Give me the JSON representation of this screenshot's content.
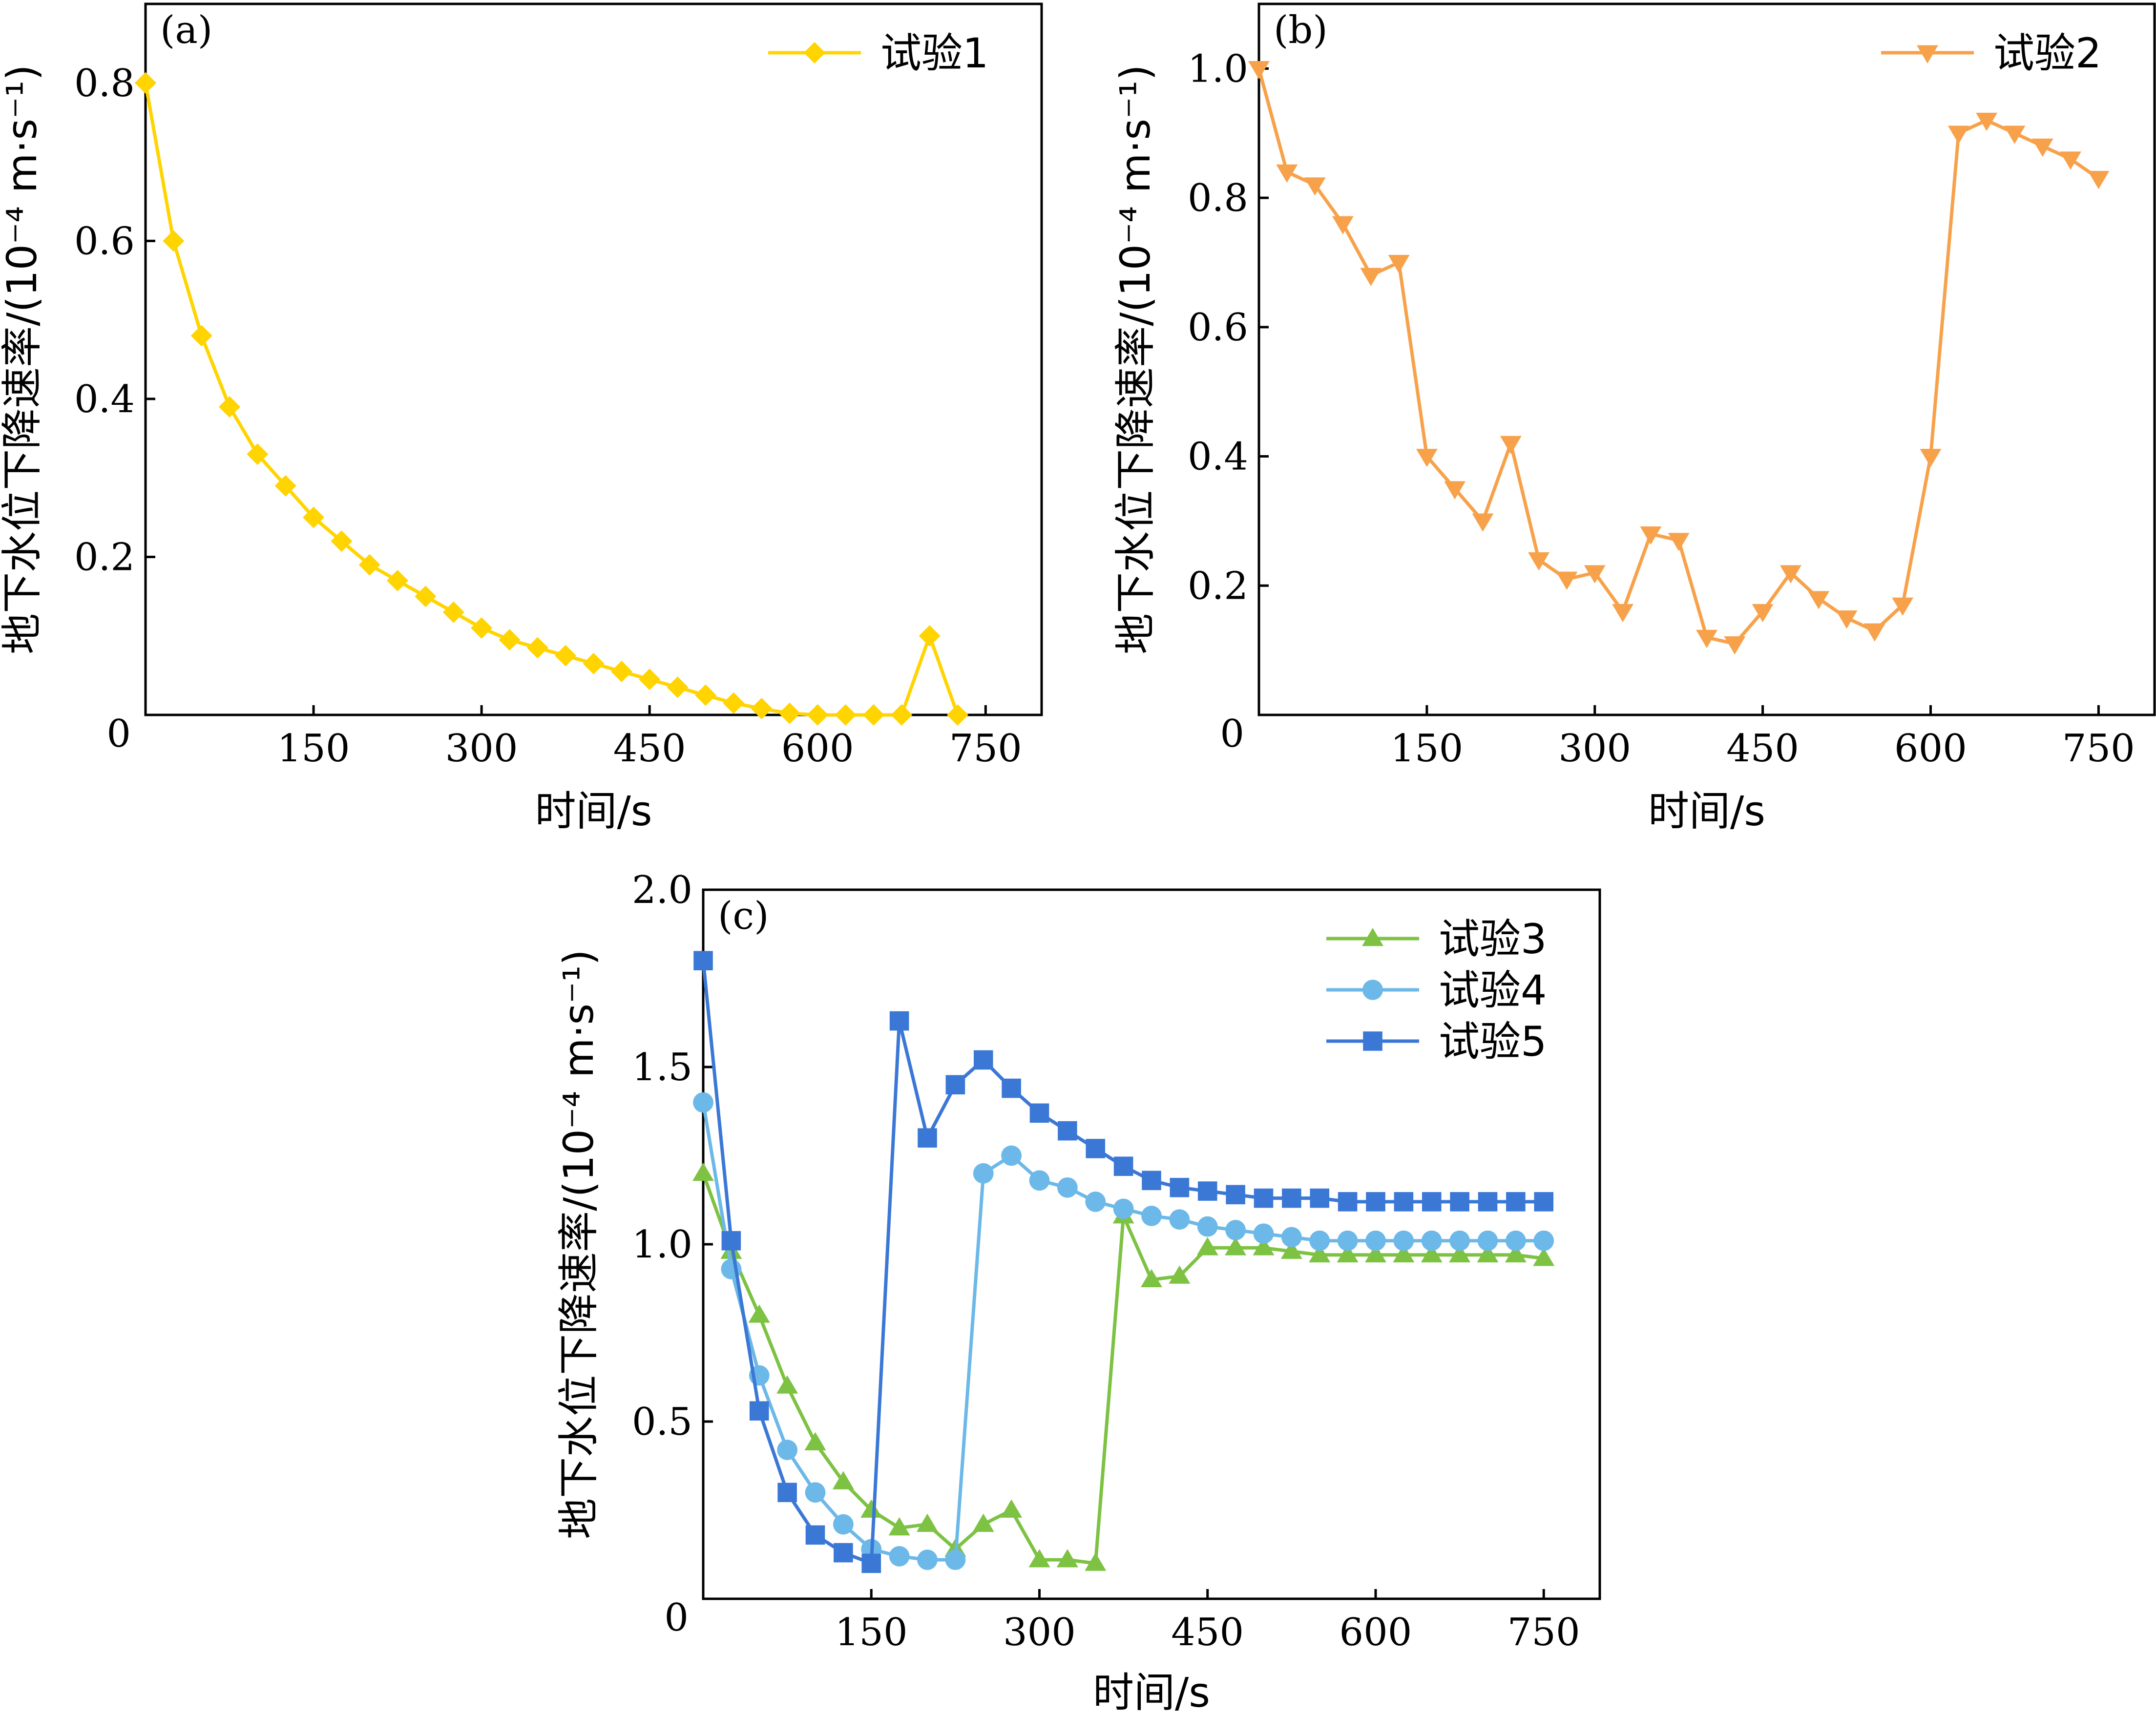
{
  "figure": {
    "panels": [
      "a",
      "b",
      "c"
    ]
  },
  "chart_data": [
    {
      "id": "a",
      "type": "line",
      "panel_label": "(a)",
      "xlabel": "时间/s",
      "ylabel": "地下水位下降速率/(10⁻⁴ m·s⁻¹)",
      "xlim": [
        0,
        800
      ],
      "ylim": [
        0,
        0.9
      ],
      "xticks": [
        0,
        150,
        300,
        450,
        600,
        750
      ],
      "xtick_labels": [
        "0",
        "150",
        "300",
        "450",
        "600",
        "750"
      ],
      "yticks": [
        0.2,
        0.4,
        0.6,
        0.8
      ],
      "ytick_labels": [
        "0.2",
        "0.4",
        "0.6",
        "0.8"
      ],
      "legend_position": "top-right",
      "series": [
        {
          "name": "试验1",
          "color": "#FFD400",
          "marker": "diamond",
          "x": [
            0,
            25,
            50,
            75,
            100,
            125,
            150,
            175,
            200,
            225,
            250,
            275,
            300,
            325,
            350,
            375,
            400,
            425,
            450,
            475,
            500,
            525,
            550,
            575,
            600,
            625,
            650,
            675,
            700,
            725
          ],
          "y": [
            0.8,
            0.6,
            0.48,
            0.39,
            0.33,
            0.29,
            0.25,
            0.22,
            0.19,
            0.17,
            0.15,
            0.13,
            0.11,
            0.095,
            0.085,
            0.075,
            0.065,
            0.055,
            0.045,
            0.035,
            0.025,
            0.015,
            0.008,
            0.002,
            0.0,
            0.0,
            0.0,
            0.0,
            0.1,
            0.0
          ]
        }
      ]
    },
    {
      "id": "b",
      "type": "line",
      "panel_label": "(b)",
      "xlabel": "时间/s",
      "ylabel": "地下水位下降速率/(10⁻⁴ m·s⁻¹)",
      "xlim": [
        0,
        800
      ],
      "ylim": [
        0,
        1.1
      ],
      "xticks": [
        0,
        150,
        300,
        450,
        600,
        750
      ],
      "xtick_labels": [
        "0",
        "150",
        "300",
        "450",
        "600",
        "750"
      ],
      "yticks": [
        0.2,
        0.4,
        0.6,
        0.8,
        1.0
      ],
      "ytick_labels": [
        "0.2",
        "0.4",
        "0.6",
        "0.8",
        "1.0"
      ],
      "legend_position": "top-right",
      "series": [
        {
          "name": "试验2",
          "color": "#F7A24B",
          "marker": "triangle-down",
          "x": [
            0,
            25,
            50,
            75,
            100,
            125,
            150,
            175,
            200,
            225,
            250,
            275,
            300,
            325,
            350,
            375,
            400,
            425,
            450,
            475,
            500,
            525,
            550,
            575,
            600,
            625,
            650,
            675,
            700,
            725,
            750
          ],
          "y": [
            1.0,
            0.84,
            0.82,
            0.76,
            0.68,
            0.7,
            0.4,
            0.35,
            0.3,
            0.42,
            0.24,
            0.21,
            0.22,
            0.16,
            0.28,
            0.27,
            0.12,
            0.11,
            0.16,
            0.22,
            0.18,
            0.15,
            0.13,
            0.17,
            0.4,
            0.9,
            0.92,
            0.9,
            0.88,
            0.86,
            0.83
          ]
        }
      ]
    },
    {
      "id": "c",
      "type": "line",
      "panel_label": "(c)",
      "xlabel": "时间/s",
      "ylabel": "地下水位下降速率/(10⁻⁴ m·s⁻¹)",
      "xlim": [
        0,
        800
      ],
      "ylim": [
        0,
        2.0
      ],
      "xticks": [
        0,
        150,
        300,
        450,
        600,
        750
      ],
      "xtick_labels": [
        "0",
        "150",
        "300",
        "450",
        "600",
        "750"
      ],
      "yticks": [
        0.5,
        1.0,
        1.5,
        2.0
      ],
      "ytick_labels": [
        "0.5",
        "1.0",
        "1.5",
        "2.0"
      ],
      "legend_position": "top-right",
      "series": [
        {
          "name": "试验3",
          "color": "#7DC242",
          "marker": "triangle-up",
          "x": [
            0,
            25,
            50,
            75,
            100,
            125,
            150,
            175,
            200,
            225,
            250,
            275,
            300,
            325,
            350,
            375,
            400,
            425,
            450,
            475,
            500,
            525,
            550,
            575,
            600,
            625,
            650,
            675,
            700,
            725,
            750
          ],
          "y": [
            1.2,
            0.98,
            0.8,
            0.6,
            0.44,
            0.33,
            0.25,
            0.2,
            0.21,
            0.14,
            0.21,
            0.25,
            0.11,
            0.11,
            0.1,
            1.08,
            0.9,
            0.91,
            0.99,
            0.99,
            0.99,
            0.98,
            0.97,
            0.97,
            0.97,
            0.97,
            0.97,
            0.97,
            0.97,
            0.97,
            0.96
          ]
        },
        {
          "name": "试验4",
          "color": "#6CB8E8",
          "marker": "circle",
          "x": [
            0,
            25,
            50,
            75,
            100,
            125,
            150,
            175,
            200,
            225,
            250,
            275,
            300,
            325,
            350,
            375,
            400,
            425,
            450,
            475,
            500,
            525,
            550,
            575,
            600,
            625,
            650,
            675,
            700,
            725,
            750
          ],
          "y": [
            1.4,
            0.93,
            0.63,
            0.42,
            0.3,
            0.21,
            0.14,
            0.12,
            0.11,
            0.11,
            1.2,
            1.25,
            1.18,
            1.16,
            1.12,
            1.1,
            1.08,
            1.07,
            1.05,
            1.04,
            1.03,
            1.02,
            1.01,
            1.01,
            1.01,
            1.01,
            1.01,
            1.01,
            1.01,
            1.01,
            1.01
          ]
        },
        {
          "name": "试验5",
          "color": "#3B78D6",
          "marker": "square",
          "x": [
            0,
            25,
            50,
            75,
            100,
            125,
            150,
            175,
            200,
            225,
            250,
            275,
            300,
            325,
            350,
            375,
            400,
            425,
            450,
            475,
            500,
            525,
            550,
            575,
            600,
            625,
            650,
            675,
            700,
            725,
            750
          ],
          "y": [
            1.8,
            1.01,
            0.53,
            0.3,
            0.18,
            0.13,
            0.1,
            1.63,
            1.3,
            1.45,
            1.52,
            1.44,
            1.37,
            1.32,
            1.27,
            1.22,
            1.18,
            1.16,
            1.15,
            1.14,
            1.13,
            1.13,
            1.13,
            1.12,
            1.12,
            1.12,
            1.12,
            1.12,
            1.12,
            1.12,
            1.12
          ]
        }
      ]
    }
  ]
}
